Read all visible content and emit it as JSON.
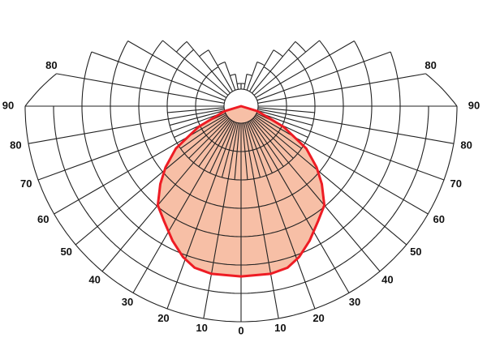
{
  "chart_data": {
    "type": "polar",
    "title": "",
    "angle_zero": "down",
    "angle_step_degrees": 10,
    "radial_max": 100,
    "radial_labels_shown": false,
    "grid": true,
    "angle_tick_labels_left": [
      "0",
      "10",
      "20",
      "30",
      "40",
      "50",
      "60",
      "70",
      "80",
      "90"
    ],
    "angle_tick_labels_right": [
      "10",
      "20",
      "30",
      "40",
      "50",
      "60",
      "70",
      "80",
      "90"
    ],
    "upper_tick_labels": [
      "80",
      "80"
    ],
    "series": [
      {
        "angles": [
          0,
          10,
          16,
          21,
          27,
          34,
          40,
          46,
          51,
          57,
          64,
          73,
          90
        ],
        "values": [
          79,
          79,
          78,
          75,
          70,
          64,
          60,
          52,
          45,
          36,
          22,
          8,
          0
        ],
        "symmetric": true,
        "fill_color": "#f7bfa6",
        "line_color": "#ee1c24"
      }
    ],
    "grid_color": "#222222"
  }
}
